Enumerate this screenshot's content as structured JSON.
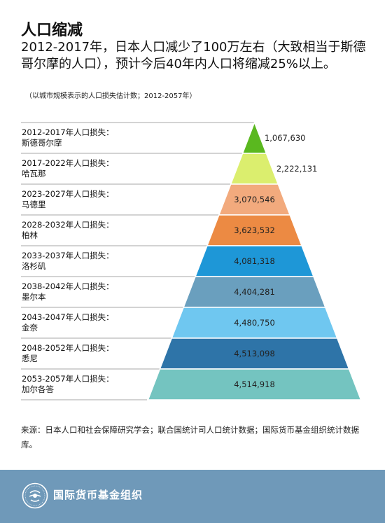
{
  "header": {
    "title": "人口缩减",
    "subtitle": "2012-2017年，日本人口减少了100万左右（大致相当于斯德哥尔摩的人口），预计今后40年内人口将缩减25%以上。",
    "note": "（以城市规模表示的人口损失估计数；2012-2057年）"
  },
  "chart_data": {
    "type": "bar",
    "chart_style": "pyramid",
    "title": "",
    "categories": [
      {
        "period": "2012-2017年人口损失：",
        "city": "斯德哥尔摩"
      },
      {
        "period": "2017-2022年人口损失：",
        "city": "哈瓦那"
      },
      {
        "period": "2023-2027年人口损失：",
        "city": "马德里"
      },
      {
        "period": "2028-2032年人口损失：",
        "city": "柏林"
      },
      {
        "period": "2033-2037年人口损失：",
        "city": "洛杉矶"
      },
      {
        "period": "2038-2042年人口损失：",
        "city": "墨尔本"
      },
      {
        "period": "2043-2047年人口损失：",
        "city": "金奈"
      },
      {
        "period": "2048-2052年人口损失：",
        "city": "悉尼"
      },
      {
        "period": "2053-2057年人口损失：",
        "city": "加尔各答"
      }
    ],
    "values": [
      1067630,
      2222131,
      3070546,
      3623532,
      4081318,
      4404281,
      4480750,
      4513098,
      4514918
    ],
    "value_labels": [
      "1,067,630",
      "2,222,131",
      "3,070,546",
      "3,623,532",
      "4,081,318",
      "4,404,281",
      "4,480,750",
      "4,513,098",
      "4,514,918"
    ],
    "colors": [
      "#5ab81f",
      "#dbee6e",
      "#f2aa7d",
      "#ec8a43",
      "#1e97d7",
      "#6a9fbe",
      "#6fc7f0",
      "#2e74a8",
      "#74c4c0"
    ],
    "value_label_colors": [
      "#222222",
      "#222222",
      "#222222",
      "#222222",
      "#ffffff",
      "#222222",
      "#222222",
      "#ffffff",
      "#222222"
    ]
  },
  "source": "来源：日本人口和社会保障研究学会；联合国统计司人口统计数据；国际货币基金组织统计数据库。",
  "footer": {
    "org_name": "国际货币基金组织",
    "background_color": "#6f99b9",
    "logo_icon": "imf-seal-icon"
  }
}
